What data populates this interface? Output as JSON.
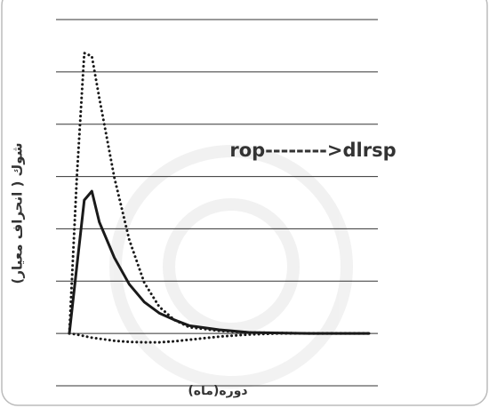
{
  "chart_data": {
    "type": "line",
    "y_label": "شوك ( انحراف معيار)",
    "x_label": "دوره(ماه)",
    "annotation": "rop-------->dlrsp",
    "x": [
      0,
      0.5,
      1,
      1.5,
      2,
      3,
      4,
      5,
      6,
      7,
      8,
      10,
      12,
      14,
      16,
      18,
      20
    ],
    "xlim": [
      0,
      20
    ],
    "ylim": [
      -1,
      6
    ],
    "yticks": [
      -1,
      0,
      1,
      2,
      3,
      4,
      5,
      6
    ],
    "grid": true,
    "series": [
      {
        "color": "#1a1a1a",
        "style": "solid",
        "values": [
          0,
          1.28,
          2.55,
          2.72,
          2.13,
          1.45,
          0.94,
          0.6,
          0.39,
          0.26,
          0.15,
          0.07,
          0.02,
          0.01,
          0,
          0,
          0
        ]
      },
      {
        "color": "#1a1a1a",
        "style": "dotted",
        "values": [
          0,
          2.98,
          5.36,
          5.3,
          4.5,
          2.98,
          1.79,
          0.97,
          0.51,
          0.26,
          0.12,
          0.05,
          0.02,
          0.01,
          0,
          0,
          0
        ]
      },
      {
        "color": "#1a1a1a",
        "style": "dotted",
        "values": [
          0,
          -0.02,
          -0.05,
          -0.08,
          -0.1,
          -0.14,
          -0.16,
          -0.17,
          -0.17,
          -0.15,
          -0.12,
          -0.06,
          -0.02,
          0,
          0,
          0,
          0
        ]
      }
    ]
  }
}
